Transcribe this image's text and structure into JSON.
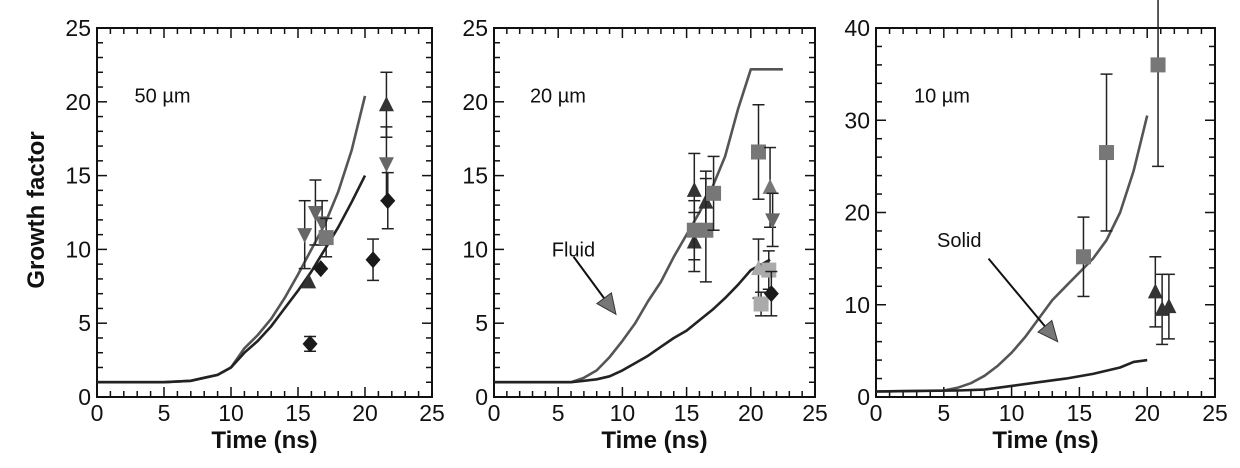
{
  "figure": {
    "ylabel": "Growth factor"
  },
  "chart_data": [
    {
      "type": "line",
      "panel_label": "50 µm",
      "xlabel": "Time  (ns)",
      "ylabel": "Growth factor",
      "xlim": [
        0,
        25
      ],
      "ylim": [
        0,
        25
      ],
      "xticks": [
        "0",
        "5",
        "10",
        "15",
        "20",
        "25"
      ],
      "yticks": [
        "0",
        "5",
        "10",
        "15",
        "20",
        "25"
      ],
      "lines": [
        {
          "color": "#555555",
          "points": [
            [
              0,
              1
            ],
            [
              5,
              1
            ],
            [
              7,
              1.1
            ],
            [
              8,
              1.3
            ],
            [
              9,
              1.5
            ],
            [
              10,
              2
            ],
            [
              11,
              3.3
            ],
            [
              12,
              4.2
            ],
            [
              13,
              5.3
            ],
            [
              14,
              6.7
            ],
            [
              15,
              8.3
            ],
            [
              16,
              10
            ],
            [
              17,
              11.7
            ],
            [
              18,
              13.9
            ],
            [
              19,
              16.7
            ],
            [
              20,
              20.4
            ]
          ]
        },
        {
          "color": "#222222",
          "points": [
            [
              0,
              1
            ],
            [
              5,
              1
            ],
            [
              7,
              1.1
            ],
            [
              8,
              1.3
            ],
            [
              9,
              1.5
            ],
            [
              10,
              2
            ],
            [
              11,
              3
            ],
            [
              12,
              3.8
            ],
            [
              13,
              4.8
            ],
            [
              14,
              6
            ],
            [
              15,
              7.2
            ],
            [
              16,
              8.5
            ],
            [
              17,
              10
            ],
            [
              18,
              11.5
            ],
            [
              19,
              13.2
            ],
            [
              20,
              15
            ]
          ]
        }
      ],
      "points": [
        {
          "marker": "triangle-down",
          "color": "#666666",
          "x": 15.5,
          "y": 11,
          "err": 2.3
        },
        {
          "marker": "triangle-down",
          "color": "#666666",
          "x": 16.3,
          "y": 12.5,
          "err": 2.2
        },
        {
          "marker": "triangle-down",
          "color": "#666666",
          "x": 16.8,
          "y": 11.8,
          "err": 1.5
        },
        {
          "marker": "triangle-down",
          "color": "#666666",
          "x": 21.6,
          "y": 15.8,
          "err": 2.5
        },
        {
          "marker": "triangle-up",
          "color": "#333333",
          "x": 15.8,
          "y": 7.8,
          "err": 0
        },
        {
          "marker": "triangle-up",
          "color": "#333333",
          "x": 21.6,
          "y": 19.8,
          "err": 2.2
        },
        {
          "marker": "square",
          "color": "#777777",
          "x": 17.1,
          "y": 10.8,
          "err": 1.3
        },
        {
          "marker": "diamond",
          "color": "#1a1a1a",
          "x": 15.9,
          "y": 3.6,
          "err": 0.5
        },
        {
          "marker": "diamond",
          "color": "#1a1a1a",
          "x": 16.7,
          "y": 8.7,
          "err": 0
        },
        {
          "marker": "diamond",
          "color": "#1a1a1a",
          "x": 20.6,
          "y": 9.3,
          "err": 1.4
        },
        {
          "marker": "diamond",
          "color": "#1a1a1a",
          "x": 21.7,
          "y": 13.3,
          "err": 1.9
        }
      ],
      "annotation": null
    },
    {
      "type": "line",
      "panel_label": "20 µm",
      "xlabel": "Time  (ns)",
      "ylabel": "",
      "xlim": [
        0,
        25
      ],
      "ylim": [
        0,
        25
      ],
      "xticks": [
        "0",
        "5",
        "10",
        "15",
        "20",
        "25"
      ],
      "yticks": [
        "0",
        "5",
        "10",
        "15",
        "20",
        "25"
      ],
      "lines": [
        {
          "color": "#555555",
          "points": [
            [
              0,
              1
            ],
            [
              6,
              1
            ],
            [
              7,
              1.3
            ],
            [
              8,
              1.8
            ],
            [
              9,
              2.7
            ],
            [
              10,
              3.8
            ],
            [
              11,
              5
            ],
            [
              12,
              6.5
            ],
            [
              13,
              7.8
            ],
            [
              14,
              9.5
            ],
            [
              15,
              11
            ],
            [
              16,
              12.5
            ],
            [
              17,
              14.2
            ],
            [
              18,
              16.3
            ],
            [
              19,
              19.5
            ],
            [
              20,
              22.2
            ],
            [
              22.5,
              22.2
            ]
          ]
        },
        {
          "color": "#222222",
          "points": [
            [
              0,
              1
            ],
            [
              6,
              1
            ],
            [
              7,
              1.1
            ],
            [
              8,
              1.2
            ],
            [
              9,
              1.4
            ],
            [
              10,
              1.8
            ],
            [
              11,
              2.3
            ],
            [
              12,
              2.8
            ],
            [
              13,
              3.4
            ],
            [
              14,
              4
            ],
            [
              15,
              4.5
            ],
            [
              16,
              5.2
            ],
            [
              17,
              5.9
            ],
            [
              18,
              6.7
            ],
            [
              19,
              7.6
            ],
            [
              20,
              8.6
            ],
            [
              21.5,
              9.3
            ]
          ]
        }
      ],
      "points": [
        {
          "marker": "triangle-up",
          "color": "#333333",
          "x": 15.6,
          "y": 14,
          "err": 2.5
        },
        {
          "marker": "triangle-up",
          "color": "#333333",
          "x": 15.6,
          "y": 10.5,
          "err": 2
        },
        {
          "marker": "triangle-up",
          "color": "#333333",
          "x": 16.5,
          "y": 13.2,
          "err": 2.1
        },
        {
          "marker": "square",
          "color": "#777777",
          "x": 15.6,
          "y": 11.3,
          "err": 2
        },
        {
          "marker": "square",
          "color": "#777777",
          "x": 16.5,
          "y": 11.3,
          "err": 3.5
        },
        {
          "marker": "square",
          "color": "#777777",
          "x": 17.1,
          "y": 13.8,
          "err": 2.5
        },
        {
          "marker": "square",
          "color": "#777777",
          "x": 20.6,
          "y": 16.6,
          "err": 3.2
        },
        {
          "marker": "triangle-up",
          "color": "#777777",
          "x": 21.5,
          "y": 14.2,
          "err": 2.7
        },
        {
          "marker": "triangle-down",
          "color": "#666666",
          "x": 21.7,
          "y": 12,
          "err": 1.8
        },
        {
          "marker": "triangle-up",
          "color": "#aaaaaa",
          "x": 20.6,
          "y": 8.7,
          "err": 2
        },
        {
          "marker": "square",
          "color": "#aaaaaa",
          "x": 20.8,
          "y": 6.3,
          "err": 0.8
        },
        {
          "marker": "square",
          "color": "#aaaaaa",
          "x": 21.4,
          "y": 8.6,
          "err": 1.3
        },
        {
          "marker": "diamond",
          "color": "#1a1a1a",
          "x": 21.6,
          "y": 7,
          "err": 1.5
        }
      ],
      "annotation": {
        "text": "Fluid",
        "label_pos": [
          4.5,
          10
        ],
        "arrow_from": [
          6.2,
          9.5
        ],
        "arrow_to": [
          9.5,
          5.6
        ]
      }
    },
    {
      "type": "line",
      "panel_label": "10 µm",
      "xlabel": "Time  (ns)",
      "ylabel": "",
      "xlim": [
        0,
        25
      ],
      "ylim": [
        0,
        40
      ],
      "xticks": [
        "0",
        "5",
        "10",
        "15",
        "20",
        "25"
      ],
      "yticks": [
        "0",
        "10",
        "20",
        "30",
        "40"
      ],
      "lines": [
        {
          "color": "#555555",
          "points": [
            [
              0,
              0.6
            ],
            [
              5,
              0.7
            ],
            [
              6,
              1
            ],
            [
              7,
              1.5
            ],
            [
              8,
              2.3
            ],
            [
              9,
              3.4
            ],
            [
              10,
              4.8
            ],
            [
              11,
              6.5
            ],
            [
              12,
              8.5
            ],
            [
              13,
              10.5
            ],
            [
              14,
              12
            ],
            [
              15,
              13.5
            ],
            [
              16,
              15
            ],
            [
              17,
              17
            ],
            [
              18,
              20
            ],
            [
              19,
              24.5
            ],
            [
              20,
              30.5
            ]
          ]
        },
        {
          "color": "#222222",
          "points": [
            [
              0,
              0.6
            ],
            [
              6,
              0.7
            ],
            [
              8,
              0.8
            ],
            [
              10,
              1.2
            ],
            [
              12,
              1.6
            ],
            [
              14,
              2
            ],
            [
              16,
              2.5
            ],
            [
              18,
              3.2
            ],
            [
              19,
              3.8
            ],
            [
              20,
              4
            ]
          ]
        }
      ],
      "points": [
        {
          "marker": "square",
          "color": "#777777",
          "x": 15.3,
          "y": 15.2,
          "err": 4.3
        },
        {
          "marker": "square",
          "color": "#777777",
          "x": 17,
          "y": 26.5,
          "err": 8.5
        },
        {
          "marker": "square",
          "color": "#777777",
          "x": 20.8,
          "y": 36,
          "err": 11
        },
        {
          "marker": "triangle-up",
          "color": "#333333",
          "x": 20.6,
          "y": 11.4,
          "err": 3.8
        },
        {
          "marker": "triangle-up",
          "color": "#333333",
          "x": 21.1,
          "y": 9.5,
          "err": 3.8
        },
        {
          "marker": "triangle-up",
          "color": "#333333",
          "x": 21.6,
          "y": 9.8,
          "err": 3.5
        }
      ],
      "annotation": {
        "text": "Solid",
        "label_pos": [
          4.5,
          17
        ],
        "arrow_from": [
          8.3,
          15
        ],
        "arrow_to": [
          13.4,
          6
        ]
      }
    }
  ]
}
